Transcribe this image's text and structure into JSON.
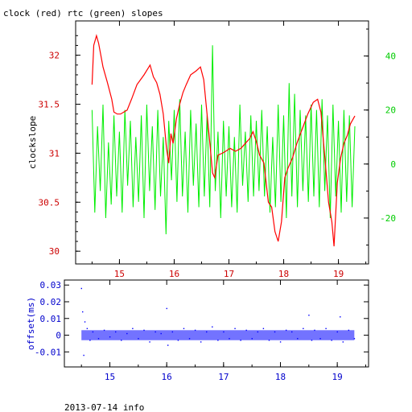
{
  "chart_data": [
    {
      "type": "line",
      "title": "clock (red) rtc (green) slopes",
      "xlabel": "",
      "ylabel": "clockslope",
      "xlim": [
        14.2,
        19.55
      ],
      "ylim": [
        29.87,
        32.35
      ],
      "x_ticks": [
        "15",
        "16",
        "17",
        "18",
        "19"
      ],
      "y_ticks": [
        "30",
        "30.5",
        "31",
        "31.5",
        "32"
      ],
      "y2lim": [
        -37,
        53
      ],
      "y2_ticks": [
        "-20",
        "0",
        "20",
        "40"
      ],
      "grid": false,
      "colors": {
        "clock": "#ff0000",
        "rtc": "#00ee00",
        "axis": "#cc0000",
        "axis2": "#00cc00"
      },
      "series": [
        {
          "name": "clock",
          "axis": "left",
          "x": [
            14.5,
            14.53,
            14.58,
            14.62,
            14.66,
            14.7,
            14.78,
            14.86,
            14.9,
            14.96,
            15.02,
            15.08,
            15.14,
            15.22,
            15.32,
            15.45,
            15.56,
            15.62,
            15.68,
            15.74,
            15.8,
            15.86,
            15.9,
            15.94,
            15.98,
            16.04,
            16.1,
            16.16,
            16.22,
            16.3,
            16.4,
            16.48,
            16.54,
            16.6,
            16.66,
            16.7,
            16.74,
            16.8,
            16.88,
            16.94,
            17.02,
            17.12,
            17.22,
            17.3,
            17.38,
            17.44,
            17.5,
            17.56,
            17.64,
            17.72,
            17.78,
            17.84,
            17.9,
            17.96,
            18.02,
            18.08,
            18.16,
            18.24,
            18.34,
            18.44,
            18.54,
            18.62,
            18.68,
            18.76,
            18.82,
            18.88,
            18.92,
            18.98,
            19.04,
            19.1,
            19.16,
            19.22,
            19.3
          ],
          "y": [
            31.7,
            32.1,
            32.2,
            32.12,
            32.0,
            31.88,
            31.72,
            31.55,
            31.42,
            31.4,
            31.4,
            31.42,
            31.44,
            31.55,
            31.7,
            31.8,
            31.9,
            31.78,
            31.72,
            31.6,
            31.4,
            31.05,
            30.9,
            31.2,
            31.1,
            31.35,
            31.5,
            31.62,
            31.7,
            31.8,
            31.84,
            31.88,
            31.75,
            31.4,
            31.05,
            30.8,
            30.75,
            30.98,
            31.0,
            31.02,
            31.05,
            31.02,
            31.05,
            31.1,
            31.15,
            31.22,
            31.12,
            30.98,
            30.9,
            30.5,
            30.45,
            30.2,
            30.1,
            30.3,
            30.75,
            30.85,
            30.95,
            31.1,
            31.25,
            31.4,
            31.52,
            31.55,
            31.42,
            30.9,
            30.5,
            30.3,
            30.05,
            30.7,
            30.95,
            31.1,
            31.18,
            31.3,
            31.38
          ]
        },
        {
          "name": "rtc",
          "axis": "right",
          "x": [
            14.5,
            14.55,
            14.6,
            14.65,
            14.7,
            14.75,
            14.8,
            14.85,
            14.9,
            14.95,
            15.0,
            15.05,
            15.1,
            15.15,
            15.2,
            15.25,
            15.3,
            15.35,
            15.4,
            15.45,
            15.5,
            15.55,
            15.6,
            15.65,
            15.7,
            15.75,
            15.8,
            15.85,
            15.9,
            15.95,
            16.0,
            16.05,
            16.1,
            16.15,
            16.2,
            16.25,
            16.3,
            16.35,
            16.4,
            16.45,
            16.5,
            16.55,
            16.6,
            16.65,
            16.7,
            16.75,
            16.8,
            16.85,
            16.9,
            16.95,
            17.0,
            17.05,
            17.1,
            17.15,
            17.2,
            17.25,
            17.3,
            17.35,
            17.4,
            17.45,
            17.5,
            17.55,
            17.6,
            17.65,
            17.7,
            17.75,
            17.8,
            17.85,
            17.9,
            17.95,
            18.0,
            18.05,
            18.1,
            18.15,
            18.2,
            18.25,
            18.3,
            18.35,
            18.4,
            18.45,
            18.5,
            18.55,
            18.6,
            18.65,
            18.7,
            18.75,
            18.8,
            18.85,
            18.9,
            18.95,
            19.0,
            19.05,
            19.1,
            19.15,
            19.2,
            19.25,
            19.3
          ],
          "y": [
            20,
            -18,
            14,
            -10,
            22,
            -20,
            8,
            -15,
            18,
            -12,
            12,
            -18,
            20,
            -8,
            16,
            -16,
            10,
            -14,
            18,
            -20,
            22,
            -10,
            14,
            -17,
            20,
            -12,
            10,
            -26,
            16,
            -6,
            20,
            -14,
            24,
            -12,
            12,
            -18,
            20,
            -8,
            15,
            -16,
            22,
            -12,
            18,
            -16,
            44,
            -10,
            12,
            -20,
            16,
            -12,
            14,
            -16,
            10,
            -18,
            22,
            -8,
            12,
            -14,
            18,
            -12,
            16,
            -10,
            20,
            -12,
            14,
            -18,
            10,
            -16,
            22,
            -14,
            18,
            -20,
            30,
            -12,
            26,
            -16,
            20,
            -10,
            18,
            -14,
            22,
            -12,
            20,
            -16,
            24,
            -10,
            18,
            -20,
            22,
            -12,
            16,
            -18,
            20,
            -14,
            18,
            -16,
            14
          ]
        }
      ]
    },
    {
      "type": "scatter",
      "title": "",
      "xlabel": "",
      "ylabel": "offset(ms)",
      "xlim": [
        14.2,
        19.55
      ],
      "ylim": [
        -0.019,
        0.033
      ],
      "x_ticks": [
        "15",
        "16",
        "17",
        "18",
        "19"
      ],
      "y_ticks": [
        "-0.01",
        "0",
        "0.01",
        "0.02",
        "0.03"
      ],
      "colors": {
        "points": "#0000ff",
        "axis": "#0000cc"
      },
      "series": [
        {
          "name": "offset",
          "x": [
            14.5,
            14.52,
            14.54,
            14.56,
            14.6,
            14.65,
            14.7,
            14.8,
            14.9,
            15.0,
            15.1,
            15.2,
            15.3,
            15.4,
            15.5,
            15.6,
            15.7,
            15.8,
            15.9,
            16.0,
            16.02,
            16.1,
            16.2,
            16.3,
            16.4,
            16.5,
            16.6,
            16.7,
            16.8,
            16.9,
            17.0,
            17.1,
            17.2,
            17.3,
            17.4,
            17.5,
            17.6,
            17.7,
            17.8,
            17.9,
            18.0,
            18.1,
            18.2,
            18.3,
            18.4,
            18.5,
            18.55,
            18.6,
            18.7,
            18.8,
            18.9,
            19.0,
            19.05,
            19.1,
            19.2,
            19.3
          ],
          "y": [
            0.028,
            0.014,
            -0.012,
            0.008,
            0.004,
            -0.003,
            0.002,
            -0.002,
            0.003,
            -0.001,
            0.002,
            -0.003,
            0.001,
            0.004,
            -0.002,
            0.003,
            -0.004,
            0.002,
            0.001,
            0.016,
            -0.006,
            0.002,
            -0.003,
            0.004,
            -0.002,
            0.003,
            -0.004,
            0.002,
            0.005,
            -0.003,
            0.002,
            -0.002,
            0.004,
            -0.003,
            0.003,
            -0.002,
            0.002,
            0.004,
            -0.003,
            0.002,
            -0.004,
            0.003,
            0.002,
            -0.002,
            0.004,
            0.012,
            -0.003,
            0.003,
            -0.002,
            0.004,
            -0.003,
            0.002,
            0.011,
            -0.004,
            0.003,
            -0.002
          ]
        }
      ]
    }
  ],
  "footer": {
    "text": "2013-07-14 info"
  }
}
